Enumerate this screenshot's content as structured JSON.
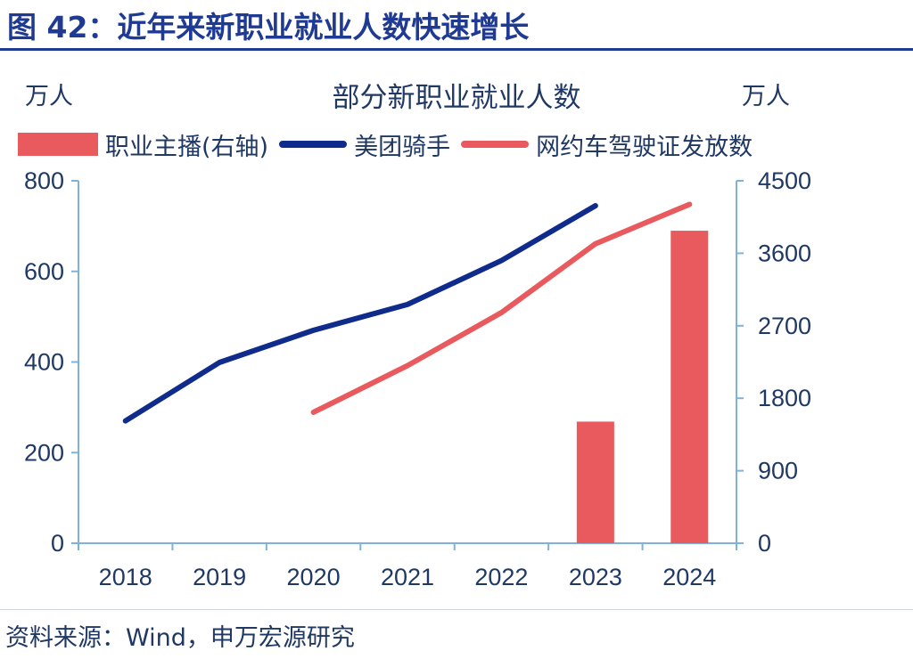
{
  "figure_title": "图 42：近年来新职业就业人数快速增长",
  "source": "资料来源：Wind，申万宏源研究",
  "colors": {
    "title": "#1f3a93",
    "text": "#1f3864",
    "axis": "#7fb2d9",
    "bar": "#e85a5e",
    "meituan": "#0f2b8c",
    "ride": "#e85a5e"
  },
  "chart_data": {
    "type": "bar+line",
    "title": "部分新职业就业人数",
    "left_unit": "万人",
    "right_unit": "万人",
    "categories": [
      "2018",
      "2019",
      "2020",
      "2021",
      "2022",
      "2023",
      "2024"
    ],
    "y_left": {
      "lim": [
        0,
        800
      ],
      "ticks": [
        "0",
        "200",
        "400",
        "600",
        "800"
      ]
    },
    "y_right": {
      "lim": [
        0,
        4500
      ],
      "ticks": [
        "0",
        "900",
        "1800",
        "2700",
        "3600",
        "4500"
      ]
    },
    "legend_position": "top",
    "series": [
      {
        "name": "职业主播(右轴)",
        "type": "bar",
        "axis": "right",
        "values": [
          null,
          null,
          null,
          null,
          null,
          1510,
          3880
        ]
      },
      {
        "name": "美团骑手",
        "type": "line",
        "axis": "left",
        "values": [
          270,
          399,
          470,
          527,
          624,
          745,
          null
        ]
      },
      {
        "name": "网约车驾驶证发放数",
        "type": "line",
        "axis": "left",
        "values": [
          null,
          null,
          289,
          392,
          509,
          661,
          748
        ]
      }
    ]
  }
}
